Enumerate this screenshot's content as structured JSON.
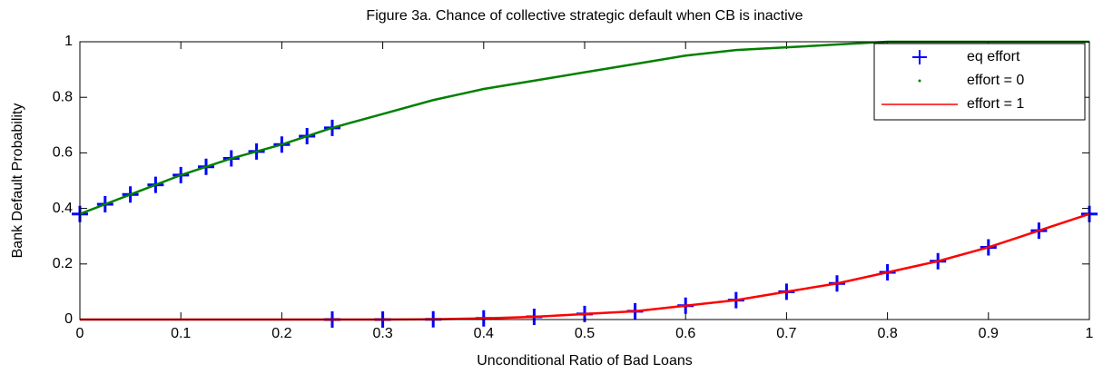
{
  "chart_data": {
    "type": "line",
    "title": "Figure 3a. Chance of collective strategic default when CB is inactive",
    "xlabel": "Unconditional Ratio of Bad Loans",
    "ylabel": "Bank Default Probability",
    "xlim": [
      0,
      1
    ],
    "ylim": [
      0,
      1
    ],
    "xticks": [
      0,
      0.1,
      0.2,
      0.3,
      0.4,
      0.5,
      0.6,
      0.7,
      0.8,
      0.9,
      1
    ],
    "yticks": [
      0,
      0.2,
      0.4,
      0.6,
      0.8,
      1
    ],
    "legend": "upper right",
    "series": [
      {
        "name": "eq effort",
        "color": "#0000ff",
        "marker": "+",
        "x": [
          0,
          0.025,
          0.05,
          0.075,
          0.1,
          0.125,
          0.15,
          0.175,
          0.2,
          0.225,
          0.25,
          0.25,
          0.3,
          0.35,
          0.4,
          0.45,
          0.5,
          0.55,
          0.6,
          0.65,
          0.7,
          0.75,
          0.8,
          0.85,
          0.9,
          0.95,
          1
        ],
        "values": [
          0.38,
          0.415,
          0.45,
          0.485,
          0.52,
          0.55,
          0.58,
          0.605,
          0.63,
          0.66,
          0.69,
          0,
          0,
          0.001,
          0.004,
          0.01,
          0.02,
          0.03,
          0.05,
          0.07,
          0.1,
          0.13,
          0.17,
          0.21,
          0.26,
          0.32,
          0.38
        ]
      },
      {
        "name": "effort = 0",
        "color": "#008000",
        "marker": ".",
        "x": [
          0,
          0.05,
          0.1,
          0.15,
          0.2,
          0.25,
          0.3,
          0.35,
          0.4,
          0.45,
          0.5,
          0.55,
          0.6,
          0.65,
          0.7,
          0.75,
          0.8,
          0.85,
          0.9,
          0.95,
          1
        ],
        "values": [
          0.38,
          0.45,
          0.52,
          0.58,
          0.63,
          0.69,
          0.74,
          0.79,
          0.83,
          0.86,
          0.89,
          0.92,
          0.95,
          0.97,
          0.98,
          0.99,
          1,
          1,
          1,
          1,
          1
        ]
      },
      {
        "name": "effort = 1",
        "color": "#ff0000",
        "marker": "-",
        "x": [
          0,
          0.05,
          0.1,
          0.15,
          0.2,
          0.25,
          0.3,
          0.35,
          0.4,
          0.45,
          0.5,
          0.55,
          0.6,
          0.65,
          0.7,
          0.75,
          0.8,
          0.85,
          0.9,
          0.95,
          1
        ],
        "values": [
          0,
          0,
          0,
          0,
          0,
          0,
          0,
          0.001,
          0.004,
          0.01,
          0.02,
          0.03,
          0.05,
          0.07,
          0.1,
          0.13,
          0.17,
          0.21,
          0.26,
          0.32,
          0.38
        ]
      }
    ]
  }
}
